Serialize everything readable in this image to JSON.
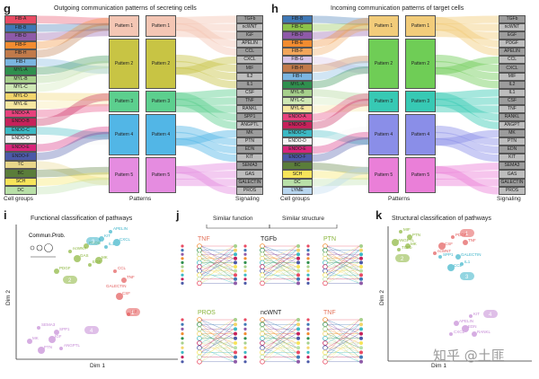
{
  "panel_g": {
    "letter": "g",
    "title": "Outgoing communication patterns of secreting cells",
    "cells": [
      {
        "name": "FIB-A",
        "color": "#e94b63"
      },
      {
        "name": "FIB-B",
        "color": "#3f78b5"
      },
      {
        "name": "FIB-D",
        "color": "#8e5aa8"
      },
      {
        "name": "FIB-F",
        "color": "#f28c30"
      },
      {
        "name": "FIB-H",
        "color": "#c17a4a"
      },
      {
        "name": "FIB-I",
        "color": "#7bb5e0"
      },
      {
        "name": "MYL-A",
        "color": "#2f8f4e"
      },
      {
        "name": "MYL-B",
        "color": "#a7d08c"
      },
      {
        "name": "MYL-C",
        "color": "#cfe8b5"
      },
      {
        "name": "MYL-D",
        "color": "#f2d56b"
      },
      {
        "name": "MYL-E",
        "color": "#f6e7a0"
      },
      {
        "name": "ENDO-A",
        "color": "#e6417c"
      },
      {
        "name": "ENDO-B",
        "color": "#c6215a"
      },
      {
        "name": "ENDO-C",
        "color": "#3cb9c4"
      },
      {
        "name": "ENDO-D",
        "color": "#f5f5f5"
      },
      {
        "name": "ENDO-E",
        "color": "#d8257a"
      },
      {
        "name": "ENDO-F",
        "color": "#4b59a8"
      },
      {
        "name": "TC",
        "color": "#e8d68a"
      },
      {
        "name": "BC",
        "color": "#5a7d3a"
      },
      {
        "name": "SCH",
        "color": "#f7e45a"
      },
      {
        "name": "DC",
        "color": "#b9e0a8"
      }
    ],
    "patterns": [
      {
        "name": "Pattern 1",
        "color": "#f4c6b4"
      },
      {
        "name": "Pattern 2",
        "color": "#c8c444"
      },
      {
        "name": "Pattern 3",
        "color": "#5ccf8e"
      },
      {
        "name": "Pattern 4",
        "color": "#52b6e6"
      },
      {
        "name": "Pattern 5",
        "color": "#e58ce0"
      }
    ],
    "signaling": [
      "TGFb",
      "ncWNT",
      "IGF",
      "APELIN",
      "CCL",
      "CXCL",
      "MIF",
      "IL2",
      "IL1",
      "CSF",
      "TNF",
      "RANKL",
      "SPP1",
      "ANGPTL",
      "MK",
      "PTN",
      "EDN",
      "KIT",
      "SEMA3",
      "GAS",
      "GALECTIN",
      "PROS"
    ],
    "footer": {
      "left": "Cell groups",
      "middle": "Patterns",
      "right": "Signaling"
    }
  },
  "panel_h": {
    "letter": "h",
    "title": "Incoming communication patterns of target cells",
    "cells": [
      {
        "name": "FIB-B",
        "color": "#3f78b5"
      },
      {
        "name": "FIB-C",
        "color": "#8cc24a"
      },
      {
        "name": "FIB-D",
        "color": "#8e5aa8"
      },
      {
        "name": "FIB-E",
        "color": "#f28c30"
      },
      {
        "name": "FIB-F",
        "color": "#f2a65a"
      },
      {
        "name": "FIB-G",
        "color": "#d7c4e8"
      },
      {
        "name": "FIB-H",
        "color": "#c17a4a"
      },
      {
        "name": "FIB-I",
        "color": "#7bb5e0"
      },
      {
        "name": "MYL-A",
        "color": "#2f8f4e"
      },
      {
        "name": "MYL-B",
        "color": "#a7d08c"
      },
      {
        "name": "MYL-C",
        "color": "#cfe8b5"
      },
      {
        "name": "MYL-E",
        "color": "#f6e7a0"
      },
      {
        "name": "ENDO-A",
        "color": "#e6417c"
      },
      {
        "name": "ENDO-B",
        "color": "#c6215a"
      },
      {
        "name": "ENDO-C",
        "color": "#3cb9c4"
      },
      {
        "name": "ENDO-D",
        "color": "#f5f5f5"
      },
      {
        "name": "ENDO-E",
        "color": "#d8257a"
      },
      {
        "name": "ENDO-F",
        "color": "#4b59a8"
      },
      {
        "name": "BC",
        "color": "#5a7d3a"
      },
      {
        "name": "SCH",
        "color": "#f7e45a"
      },
      {
        "name": "DC",
        "color": "#b9e0a8"
      },
      {
        "name": "LYME",
        "color": "#b8d6ef"
      }
    ],
    "patterns": [
      {
        "name": "Pattern 1",
        "color": "#f2cc7a"
      },
      {
        "name": "Pattern 2",
        "color": "#6fcd56"
      },
      {
        "name": "Pattern 3",
        "color": "#37c9b4"
      },
      {
        "name": "Pattern 4",
        "color": "#8a8ee8"
      },
      {
        "name": "Pattern 5",
        "color": "#ea7fd8"
      }
    ],
    "signaling": [
      "TGFb",
      "ncWNT",
      "EGF",
      "PDGF",
      "APELIN",
      "CCL",
      "CXCL",
      "MIF",
      "IL2",
      "IL1",
      "CSF",
      "TNF",
      "RANKL",
      "ANGPT",
      "MK",
      "PTN",
      "EDN",
      "KIT",
      "SEMA3",
      "GAS",
      "GALECTIN",
      "PROS"
    ],
    "footer": {
      "left": "Cell groups",
      "middle": "Patterns",
      "right": "Signaling"
    }
  },
  "panel_i": {
    "letter": "i",
    "title": "Functional classification of pathways",
    "legend": "Commun.Prob.",
    "xlabel": "Dim 1",
    "ylabel": "Dim 2",
    "groups": [
      {
        "id": "1",
        "color": "#e35a5a",
        "labels": [
          "CCL",
          "TNF",
          "CSF",
          "IL2"
        ]
      },
      {
        "id": "2",
        "color": "#8ab53b",
        "labels": [
          "ncWNT",
          "PROS",
          "GAS",
          "EGF",
          "PDGF",
          "MK"
        ]
      },
      {
        "id": "3",
        "color": "#3bb3c9",
        "labels": [
          "APELIN",
          "KIT",
          "CXCL",
          "IL1"
        ]
      },
      {
        "id": "4",
        "color": "#c58ad6",
        "labels": [
          "SEMA3",
          "SPP1",
          "PTN",
          "ANGPTL",
          "MK",
          "IGF"
        ]
      }
    ],
    "extra_labels": [
      "GALECTIN"
    ]
  },
  "panel_j": {
    "letter": "j",
    "header_left": "Similar function",
    "header_right": "Similar structure",
    "top": [
      {
        "name": "TNF",
        "color": "#e3725a"
      },
      {
        "name": "TGFb",
        "color": "#222222"
      },
      {
        "name": "PTN",
        "color": "#8ab53b"
      }
    ],
    "bottom": [
      {
        "name": "PROS",
        "color": "#8ab53b"
      },
      {
        "name": "ncWNT",
        "color": "#222222"
      },
      {
        "name": "TNF",
        "color": "#e3725a"
      }
    ]
  },
  "panel_k": {
    "letter": "k",
    "title": "Structural classification of pathways",
    "xlabel": "Dim 1",
    "ylabel": "Dim 2",
    "groups": [
      {
        "id": "1",
        "color": "#e35a5a",
        "labels": [
          "PDGF",
          "TNF",
          "CSF",
          "ncWNT"
        ]
      },
      {
        "id": "2",
        "color": "#8ab53b",
        "labels": [
          "MIF",
          "PTN",
          "ANGPTL",
          "TGFb",
          "MK"
        ]
      },
      {
        "id": "3",
        "color": "#3bb3c9",
        "labels": [
          "SPP1",
          "GALECTIN",
          "CCL",
          "IL1"
        ]
      },
      {
        "id": "4",
        "color": "#c58ad6",
        "labels": [
          "KIT",
          "APELIN",
          "EDN",
          "CXCL",
          "RANKL"
        ]
      }
    ],
    "watermark": "知乎 @土匪"
  }
}
